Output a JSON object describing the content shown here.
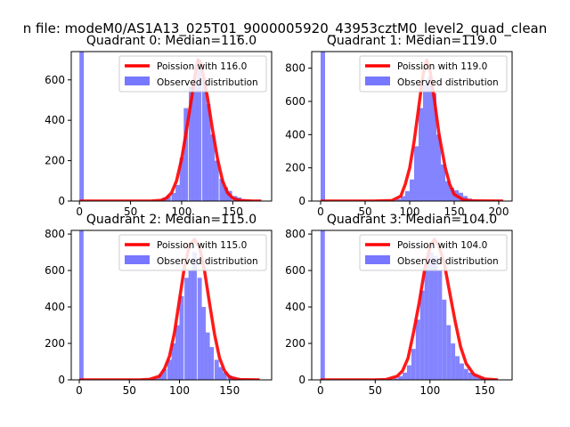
{
  "figure": {
    "suptitle": "n file: modeM0/AS1A13_025T01_9000005920_43953cztM0_level2_quad_clean",
    "fit_color": "#ff0000",
    "hist_color": "#7777ff",
    "fit_line_label_prefix": "Poission with "
  },
  "chart_data": [
    {
      "type": "bar",
      "title": "Quadrant 0: Median=116.0",
      "median": 116.0,
      "xlim": [
        -8,
        188
      ],
      "ylim": [
        0,
        740
      ],
      "xticks": [
        0,
        50,
        100,
        150
      ],
      "yticks": [
        0,
        200,
        400,
        600
      ],
      "legend": {
        "placement": "upper right",
        "entries": [
          "Poission with 116.0",
          "Observed distribution"
        ]
      },
      "bin_width": 4.3,
      "hist_x": [
        0,
        77,
        81,
        85,
        90,
        94,
        98,
        102,
        107,
        111,
        115,
        120,
        124,
        128,
        132,
        137,
        141,
        145,
        150,
        154,
        158,
        162,
        167
      ],
      "hist_y": [
        750,
        3,
        15,
        28,
        40,
        80,
        215,
        460,
        570,
        590,
        700,
        600,
        480,
        330,
        200,
        110,
        68,
        50,
        25,
        18,
        10,
        5,
        3
      ],
      "fit_x": [
        0,
        60,
        70,
        80,
        85,
        90,
        95,
        100,
        105,
        110,
        113,
        116,
        119,
        122,
        125,
        130,
        135,
        140,
        145,
        150,
        155,
        160,
        170,
        178
      ],
      "fit_y": [
        0,
        0,
        0,
        4,
        15,
        40,
        100,
        210,
        360,
        520,
        620,
        700,
        680,
        600,
        520,
        360,
        210,
        100,
        40,
        15,
        5,
        2,
        0,
        0
      ]
    },
    {
      "type": "bar",
      "title": "Quadrant 1: Median=119.0",
      "median": 119.0,
      "xlim": [
        -10,
        215
      ],
      "ylim": [
        0,
        900
      ],
      "xticks": [
        0,
        50,
        100,
        150,
        200
      ],
      "yticks": [
        0,
        200,
        400,
        600,
        800
      ],
      "legend": {
        "placement": "upper right",
        "entries": [
          "Poission with 119.0",
          "Observed distribution"
        ]
      },
      "bin_width": 5.0,
      "hist_x": [
        0,
        80,
        85,
        90,
        95,
        100,
        105,
        110,
        115,
        120,
        125,
        130,
        135,
        140,
        145,
        150,
        155,
        160,
        165,
        170,
        175
      ],
      "hist_y": [
        920,
        3,
        12,
        30,
        60,
        130,
        330,
        560,
        700,
        750,
        650,
        400,
        220,
        120,
        80,
        65,
        50,
        30,
        15,
        10,
        5
      ],
      "fit_x": [
        0,
        60,
        80,
        90,
        95,
        100,
        105,
        110,
        115,
        119,
        123,
        128,
        133,
        140,
        145,
        150,
        160,
        170,
        205
      ],
      "fit_y": [
        0,
        0,
        3,
        30,
        100,
        200,
        360,
        560,
        760,
        850,
        780,
        600,
        400,
        200,
        100,
        40,
        8,
        1,
        0
      ]
    },
    {
      "type": "bar",
      "title": "Quadrant 2: Median=115.0",
      "median": 115.0,
      "xlim": [
        -8,
        192
      ],
      "ylim": [
        0,
        820
      ],
      "xticks": [
        0,
        50,
        100,
        150
      ],
      "yticks": [
        0,
        200,
        400,
        600,
        800
      ],
      "legend": {
        "placement": "upper right",
        "entries": [
          "Poission with 115.0",
          "Observed distribution"
        ]
      },
      "bin_width": 4.3,
      "hist_x": [
        0,
        75,
        79,
        83,
        88,
        92,
        96,
        100,
        105,
        109,
        113,
        118,
        122,
        126,
        130,
        135,
        139,
        143,
        148,
        152,
        156,
        160,
        165,
        169
      ],
      "hist_y": [
        830,
        8,
        30,
        60,
        110,
        200,
        300,
        460,
        560,
        600,
        700,
        560,
        400,
        260,
        180,
        110,
        70,
        40,
        25,
        12,
        8,
        5,
        3,
        2
      ],
      "fit_x": [
        0,
        60,
        70,
        80,
        85,
        90,
        95,
        100,
        105,
        110,
        115,
        120,
        125,
        130,
        135,
        140,
        145,
        150,
        160,
        180
      ],
      "fit_y": [
        0,
        0,
        3,
        20,
        60,
        130,
        260,
        440,
        620,
        740,
        770,
        730,
        600,
        420,
        250,
        120,
        50,
        15,
        2,
        0
      ]
    },
    {
      "type": "bar",
      "title": "Quadrant 3: Median=104.0",
      "median": 104.0,
      "xlim": [
        -8,
        175
      ],
      "ylim": [
        0,
        820
      ],
      "xticks": [
        0,
        50,
        100,
        150
      ],
      "yticks": [
        0,
        200,
        400,
        600,
        800
      ],
      "legend": {
        "placement": "upper right",
        "entries": [
          "Poission with 104.0",
          "Observed distribution"
        ]
      },
      "bin_width": 4.0,
      "hist_x": [
        0,
        63,
        67,
        71,
        75,
        79,
        83,
        87,
        91,
        95,
        99,
        103,
        107,
        111,
        115,
        119,
        123,
        127,
        131,
        135,
        139,
        143,
        147,
        151,
        155,
        159
      ],
      "hist_y": [
        840,
        3,
        8,
        20,
        40,
        80,
        170,
        330,
        490,
        630,
        700,
        680,
        600,
        440,
        300,
        200,
        130,
        90,
        60,
        40,
        25,
        15,
        10,
        6,
        4,
        3
      ],
      "fit_x": [
        0,
        50,
        60,
        70,
        75,
        80,
        85,
        90,
        95,
        100,
        104,
        108,
        113,
        118,
        123,
        128,
        133,
        140,
        150,
        162
      ],
      "fit_y": [
        0,
        0,
        2,
        20,
        50,
        120,
        260,
        420,
        600,
        730,
        770,
        740,
        640,
        480,
        320,
        180,
        90,
        30,
        5,
        0
      ]
    }
  ]
}
